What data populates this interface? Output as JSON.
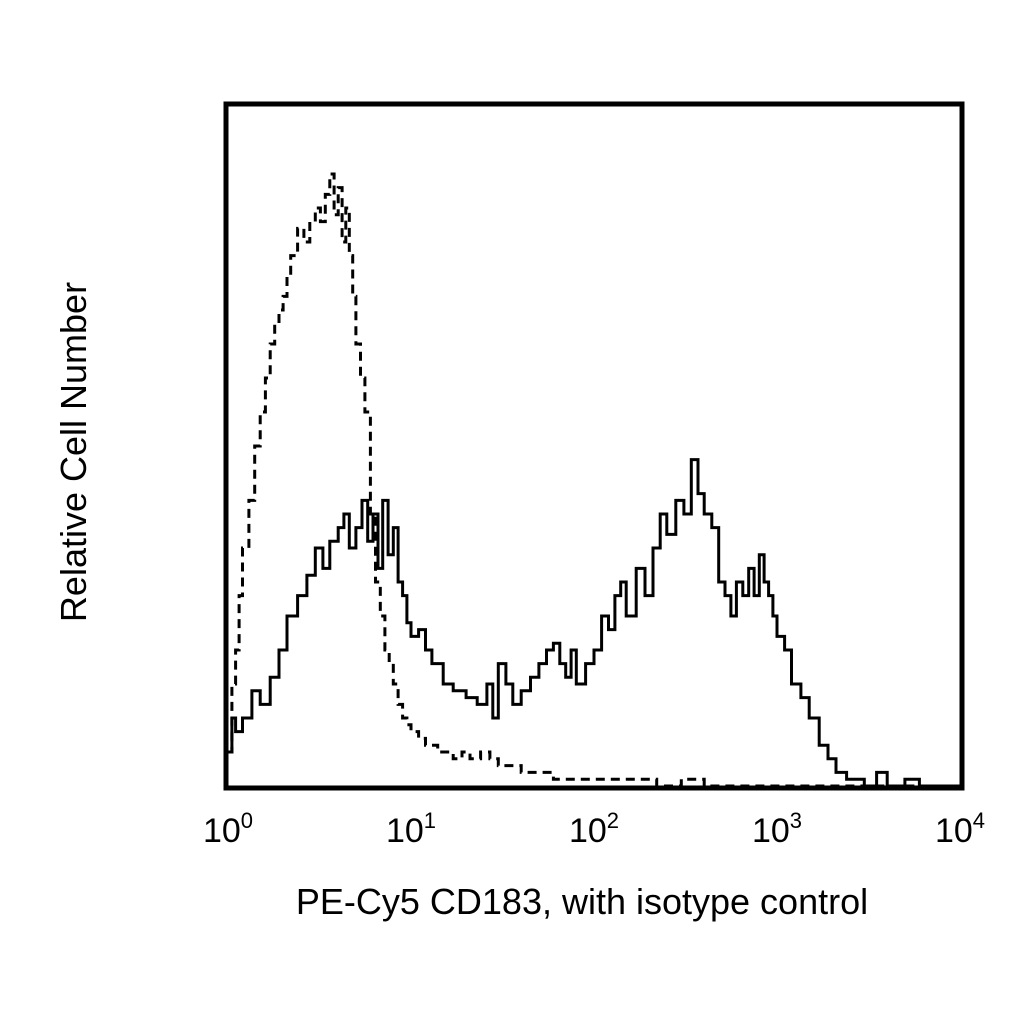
{
  "chart_data": {
    "type": "line",
    "title": "",
    "xlabel": "PE-Cy5 CD183, with isotype control",
    "ylabel": "Relative Cell Number",
    "x_scale": "log",
    "xlim": [
      1,
      10000
    ],
    "ylim": [
      0,
      100
    ],
    "grid": false,
    "legend": "none",
    "x_ticks": [
      {
        "base": "10",
        "exp": "0",
        "value": 1
      },
      {
        "base": "10",
        "exp": "1",
        "value": 10
      },
      {
        "base": "10",
        "exp": "2",
        "value": 100
      },
      {
        "base": "10",
        "exp": "3",
        "value": 1000
      },
      {
        "base": "10",
        "exp": "4",
        "value": 10000
      }
    ],
    "series": [
      {
        "style": "solid",
        "color": "#000000",
        "x": [
          1.0,
          1.05,
          1.1,
          1.2,
          1.35,
          1.5,
          1.7,
          1.9,
          2.1,
          2.4,
          2.7,
          3.0,
          3.3,
          3.6,
          4.0,
          4.3,
          4.6,
          5.0,
          5.4,
          5.8,
          6.2,
          6.6,
          7.0,
          7.5,
          8.0,
          8.5,
          9.0,
          9.5,
          10,
          11,
          12,
          13,
          15,
          17,
          20,
          23,
          26,
          28,
          30,
          33,
          36,
          40,
          45,
          50,
          55,
          60,
          65,
          70,
          75,
          80,
          90,
          100,
          110,
          120,
          130,
          140,
          150,
          170,
          190,
          210,
          230,
          250,
          280,
          310,
          340,
          370,
          400,
          440,
          480,
          520,
          560,
          600,
          650,
          700,
          750,
          800,
          850,
          900,
          950,
          1000,
          1100,
          1200,
          1350,
          1500,
          1700,
          1900,
          2100,
          2400,
          2700,
          3000,
          3500,
          4000,
          5000,
          6000,
          8000,
          10000
        ],
        "y": [
          5,
          10,
          8,
          10,
          14,
          12,
          16,
          20,
          25,
          28,
          31,
          35,
          32,
          36,
          38,
          40,
          35,
          38,
          42,
          36,
          40,
          32,
          42,
          34,
          38,
          30,
          28,
          24,
          22,
          23,
          20,
          18,
          15,
          14,
          13,
          12,
          15,
          10,
          18,
          15,
          12,
          14,
          16,
          18,
          20,
          21,
          18,
          16,
          20,
          15,
          18,
          20,
          25,
          23,
          28,
          30,
          25,
          32,
          28,
          35,
          40,
          37,
          42,
          40,
          48,
          43,
          40,
          38,
          30,
          28,
          25,
          30,
          28,
          32,
          28,
          34,
          30,
          28,
          25,
          22,
          20,
          15,
          13,
          10,
          6,
          4,
          2,
          1,
          1,
          0,
          2,
          0,
          1,
          0,
          0,
          0
        ]
      },
      {
        "style": "dashed",
        "color": "#000000",
        "x": [
          1.0,
          1.05,
          1.1,
          1.15,
          1.2,
          1.3,
          1.4,
          1.5,
          1.6,
          1.7,
          1.8,
          1.9,
          2.0,
          2.1,
          2.2,
          2.4,
          2.6,
          2.8,
          3.0,
          3.2,
          3.4,
          3.6,
          3.8,
          4.0,
          4.2,
          4.4,
          4.6,
          4.8,
          5.0,
          5.3,
          5.6,
          6.0,
          6.4,
          6.8,
          7.2,
          7.6,
          8.0,
          8.5,
          9.0,
          9.5,
          10,
          11,
          12,
          13,
          14,
          15,
          17,
          19,
          21,
          24,
          27,
          30,
          35,
          40,
          50,
          60,
          70,
          80,
          100,
          130,
          170,
          220,
          300,
          400,
          600,
          1000,
          2000,
          5000,
          10000
        ],
        "y": [
          5,
          15,
          20,
          28,
          35,
          42,
          50,
          55,
          60,
          65,
          68,
          70,
          72,
          75,
          78,
          82,
          80,
          83,
          85,
          83,
          87,
          90,
          84,
          88,
          80,
          85,
          78,
          72,
          65,
          60,
          55,
          40,
          30,
          25,
          20,
          18,
          15,
          12,
          10,
          9,
          8,
          7,
          6,
          6,
          5,
          5,
          4,
          5,
          4,
          5,
          4,
          3,
          3,
          2,
          2,
          1,
          1,
          1,
          1,
          1,
          1,
          0,
          1,
          0,
          0,
          0,
          0,
          0,
          0
        ]
      }
    ]
  }
}
